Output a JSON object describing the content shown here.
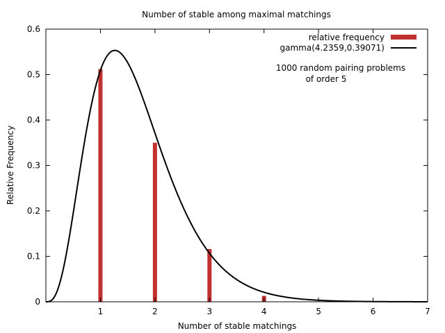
{
  "chart_data": {
    "type": "bar",
    "title": "Number of stable among maximal matchings",
    "xlabel": "Number of stable matchings",
    "ylabel": "Relative Frequency",
    "xlim": [
      0,
      7
    ],
    "ylim": [
      0,
      0.6
    ],
    "x_ticks": [
      "1",
      "2",
      "3",
      "4",
      "5",
      "6",
      "7"
    ],
    "y_ticks": [
      "0",
      "0.1",
      "0.2",
      "0.3",
      "0.4",
      "0.5",
      "0.6"
    ],
    "grid": false,
    "legend_position": "top-right",
    "bars": {
      "name": "relative frequency",
      "color": "#c0312f",
      "x": [
        1,
        2,
        3,
        4
      ],
      "values": [
        0.512,
        0.35,
        0.116,
        0.013
      ]
    },
    "curve": {
      "name": "gamma(4.2359,0.39071)",
      "color": "#000000",
      "shape": 4.2359,
      "scale": 0.39071
    },
    "annotation": [
      "1000 random pairing problems",
      "of order 5"
    ]
  }
}
